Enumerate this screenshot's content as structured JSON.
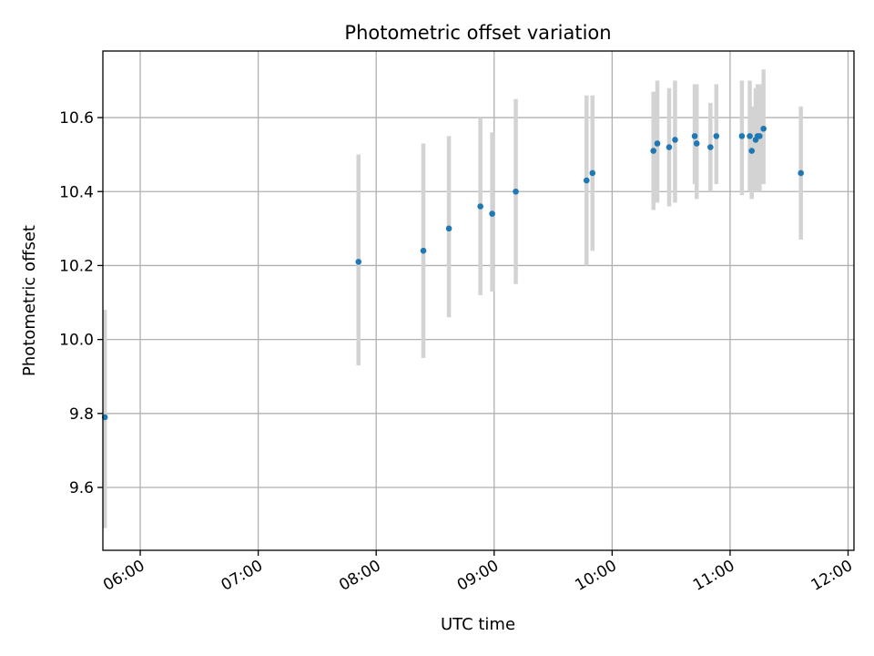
{
  "chart_data": {
    "type": "scatter",
    "title": "Photometric offset variation",
    "xlabel": "UTC time",
    "ylabel": "Photometric offset",
    "x_axis_type": "time",
    "xlim": [
      "05:41",
      "12:03"
    ],
    "ylim": [
      9.43,
      10.78
    ],
    "xticks": [
      "06:00",
      "07:00",
      "08:00",
      "09:00",
      "10:00",
      "11:00",
      "12:00"
    ],
    "yticks": [
      "9.6",
      "9.8",
      "10.0",
      "10.2",
      "10.4",
      "10.6"
    ],
    "grid": true,
    "legend": "none",
    "colors": {
      "marker": "#1f77b4",
      "errorbar": "#d3d3d3",
      "grid": "#b0b0b0"
    },
    "points": [
      {
        "x": "05:42",
        "y": 9.79,
        "lo": 9.49,
        "hi": 10.08
      },
      {
        "x": "07:51",
        "y": 10.21,
        "lo": 9.93,
        "hi": 10.5
      },
      {
        "x": "08:24",
        "y": 10.24,
        "lo": 9.95,
        "hi": 10.53
      },
      {
        "x": "08:37",
        "y": 10.3,
        "lo": 10.06,
        "hi": 10.55
      },
      {
        "x": "08:53",
        "y": 10.36,
        "lo": 10.12,
        "hi": 10.6
      },
      {
        "x": "08:59",
        "y": 10.34,
        "lo": 10.13,
        "hi": 10.56
      },
      {
        "x": "09:11",
        "y": 10.4,
        "lo": 10.15,
        "hi": 10.65
      },
      {
        "x": "09:47",
        "y": 10.43,
        "lo": 10.2,
        "hi": 10.66
      },
      {
        "x": "09:50",
        "y": 10.45,
        "lo": 10.24,
        "hi": 10.66
      },
      {
        "x": "10:21",
        "y": 10.51,
        "lo": 10.35,
        "hi": 10.67
      },
      {
        "x": "10:23",
        "y": 10.53,
        "lo": 10.37,
        "hi": 10.7
      },
      {
        "x": "10:29",
        "y": 10.52,
        "lo": 10.36,
        "hi": 10.68
      },
      {
        "x": "10:32",
        "y": 10.54,
        "lo": 10.37,
        "hi": 10.7
      },
      {
        "x": "10:42",
        "y": 10.55,
        "lo": 10.42,
        "hi": 10.69
      },
      {
        "x": "10:43",
        "y": 10.53,
        "lo": 10.38,
        "hi": 10.69
      },
      {
        "x": "10:50",
        "y": 10.52,
        "lo": 10.4,
        "hi": 10.64
      },
      {
        "x": "10:53",
        "y": 10.55,
        "lo": 10.42,
        "hi": 10.69
      },
      {
        "x": "11:06",
        "y": 10.55,
        "lo": 10.39,
        "hi": 10.7
      },
      {
        "x": "11:10",
        "y": 10.55,
        "lo": 10.4,
        "hi": 10.7
      },
      {
        "x": "11:11",
        "y": 10.51,
        "lo": 10.38,
        "hi": 10.63
      },
      {
        "x": "11:13",
        "y": 10.54,
        "lo": 10.4,
        "hi": 10.68
      },
      {
        "x": "11:14",
        "y": 10.55,
        "lo": 10.4,
        "hi": 10.69
      },
      {
        "x": "11:15",
        "y": 10.55,
        "lo": 10.4,
        "hi": 10.69
      },
      {
        "x": "11:17",
        "y": 10.57,
        "lo": 10.42,
        "hi": 10.73
      },
      {
        "x": "11:36",
        "y": 10.45,
        "lo": 10.27,
        "hi": 10.63
      }
    ]
  }
}
